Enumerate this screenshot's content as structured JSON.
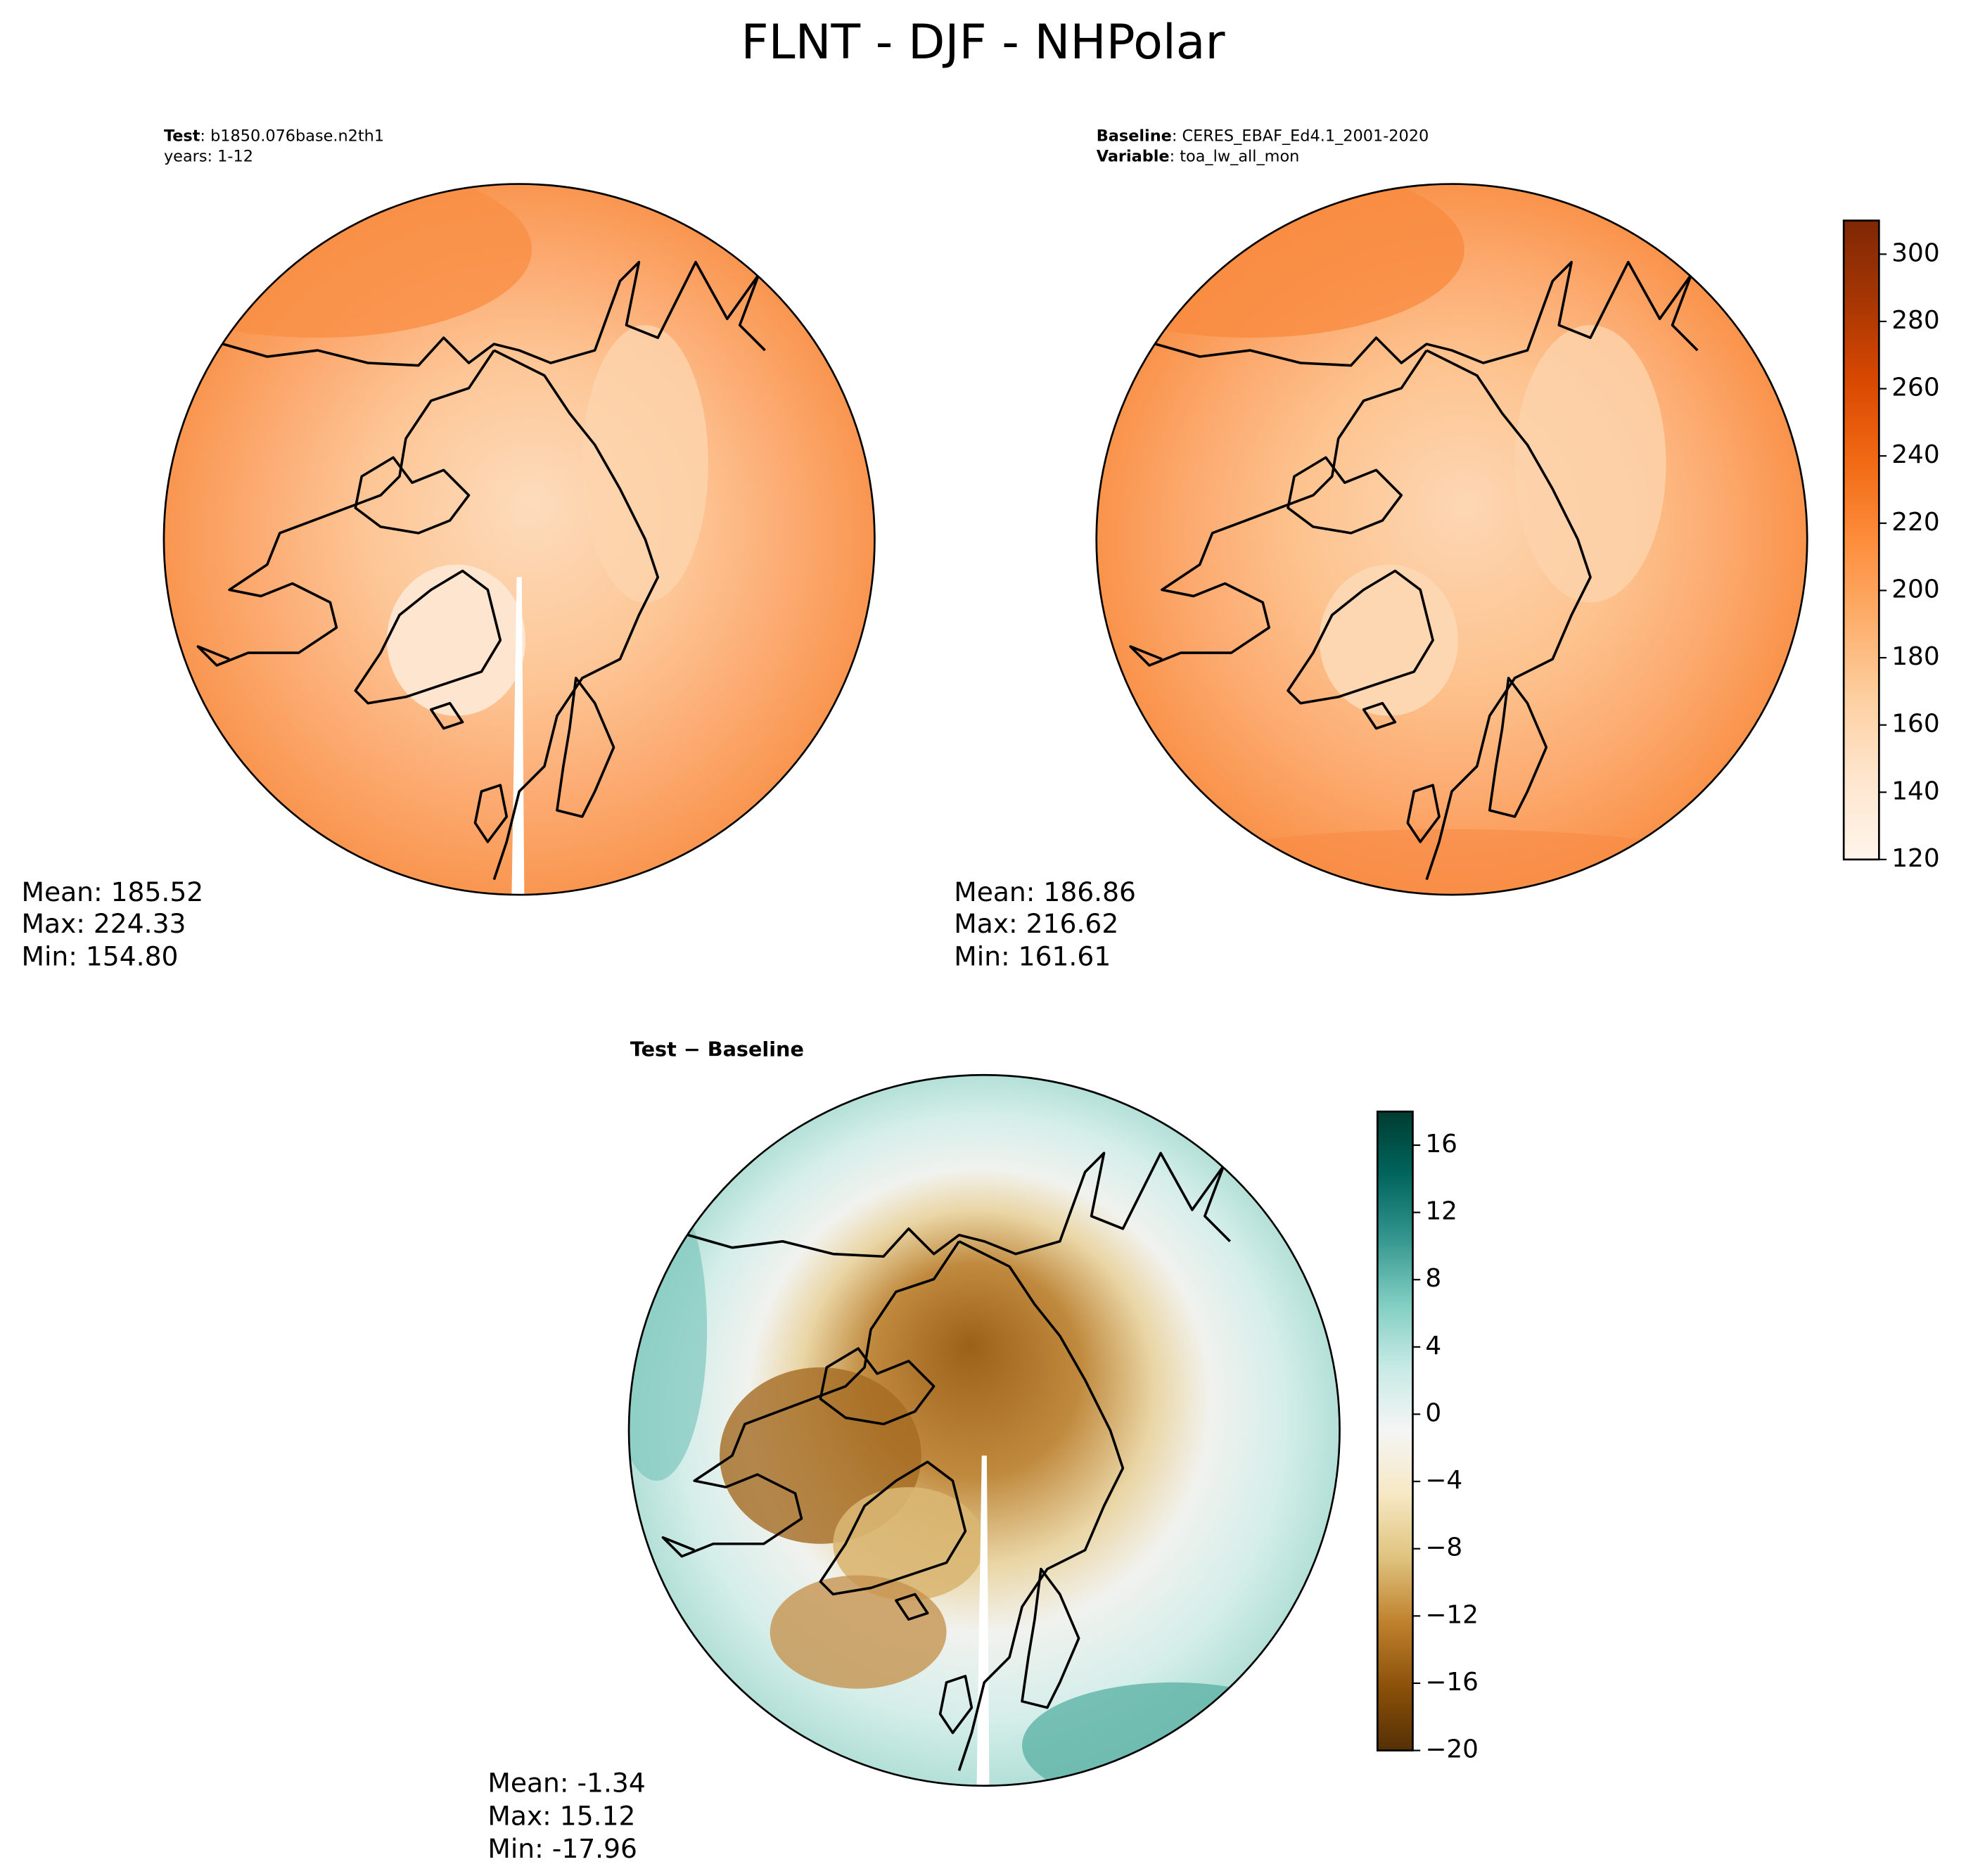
{
  "title": "FLNT - DJF - NHPolar",
  "panels": [
    {
      "label_lines": [
        [
          "Test",
          ": b1850.076base.n2th1"
        ],
        [
          "years: 1-12"
        ]
      ],
      "stats": [
        "Mean: 185.52",
        "Max: 224.33",
        "Min: 154.80"
      ]
    },
    {
      "label_lines": [
        [
          "Baseline",
          ": CERES_EBAF_Ed4.1_2001-2020"
        ],
        [
          "Variable",
          ": toa_lw_all_mon"
        ]
      ],
      "stats": [
        "Mean: 186.86",
        "Max: 216.62",
        "Min: 161.61"
      ]
    },
    {
      "label_lines": [
        [
          "Test − Baseline"
        ]
      ],
      "stats": [
        "Mean: -1.34",
        "Max: 15.12",
        "Min: -17.96"
      ]
    }
  ],
  "colorbars": [
    {
      "lim": [
        120,
        310
      ],
      "ticks": [
        120,
        140,
        160,
        180,
        200,
        220,
        240,
        260,
        280,
        300
      ],
      "cmap": [
        "#fff5eb",
        "#fee6ce",
        "#fdd0a2",
        "#fdae6b",
        "#fd8d3c",
        "#f16913",
        "#d94801",
        "#a63603",
        "#7f2704"
      ]
    },
    {
      "lim": [
        -20,
        18
      ],
      "ticks": [
        {
          "value": -20,
          "label": "−20"
        },
        {
          "value": -16,
          "label": "−16"
        },
        {
          "value": -12,
          "label": "−12"
        },
        {
          "value": -8,
          "label": "−8"
        },
        {
          "value": -4,
          "label": "−4"
        },
        0,
        4,
        8,
        12,
        16
      ],
      "cmap": [
        "#543005",
        "#8c510a",
        "#bf812d",
        "#dfc27d",
        "#f6e8c3",
        "#f5f5f5",
        "#c7eae5",
        "#80cdc1",
        "#35978f",
        "#01665e",
        "#003c30"
      ]
    }
  ]
}
